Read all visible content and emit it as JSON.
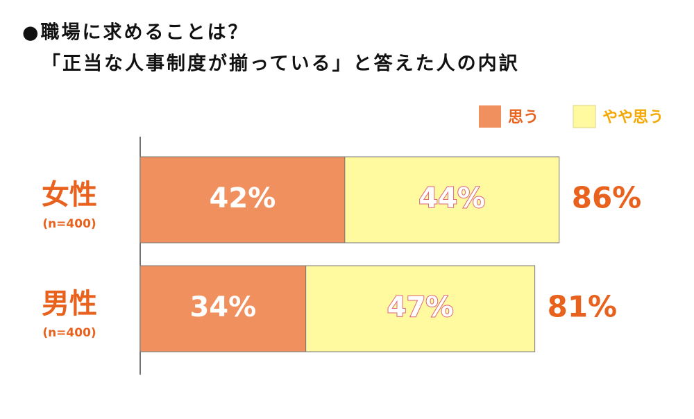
{
  "chart_data": {
    "type": "stacked-bar",
    "title": "●職場に求めることは？",
    "subtitle": "「正当な人事制度が揃っている」と答えた人の内訳",
    "categories": [
      "女性",
      "男性"
    ],
    "category_notes": [
      "(n=400)",
      "(n=400)"
    ],
    "series": [
      {
        "name": "思う",
        "color": "#f0905f",
        "values": [
          42,
          34
        ],
        "value_labels": [
          "42%",
          "34%"
        ]
      },
      {
        "name": "やや思う",
        "color": "#fffaa0",
        "values": [
          44,
          47
        ],
        "value_labels": [
          "44%",
          "47%"
        ]
      }
    ],
    "totals": [
      86,
      81
    ],
    "total_labels": [
      "86%",
      "81%"
    ]
  }
}
